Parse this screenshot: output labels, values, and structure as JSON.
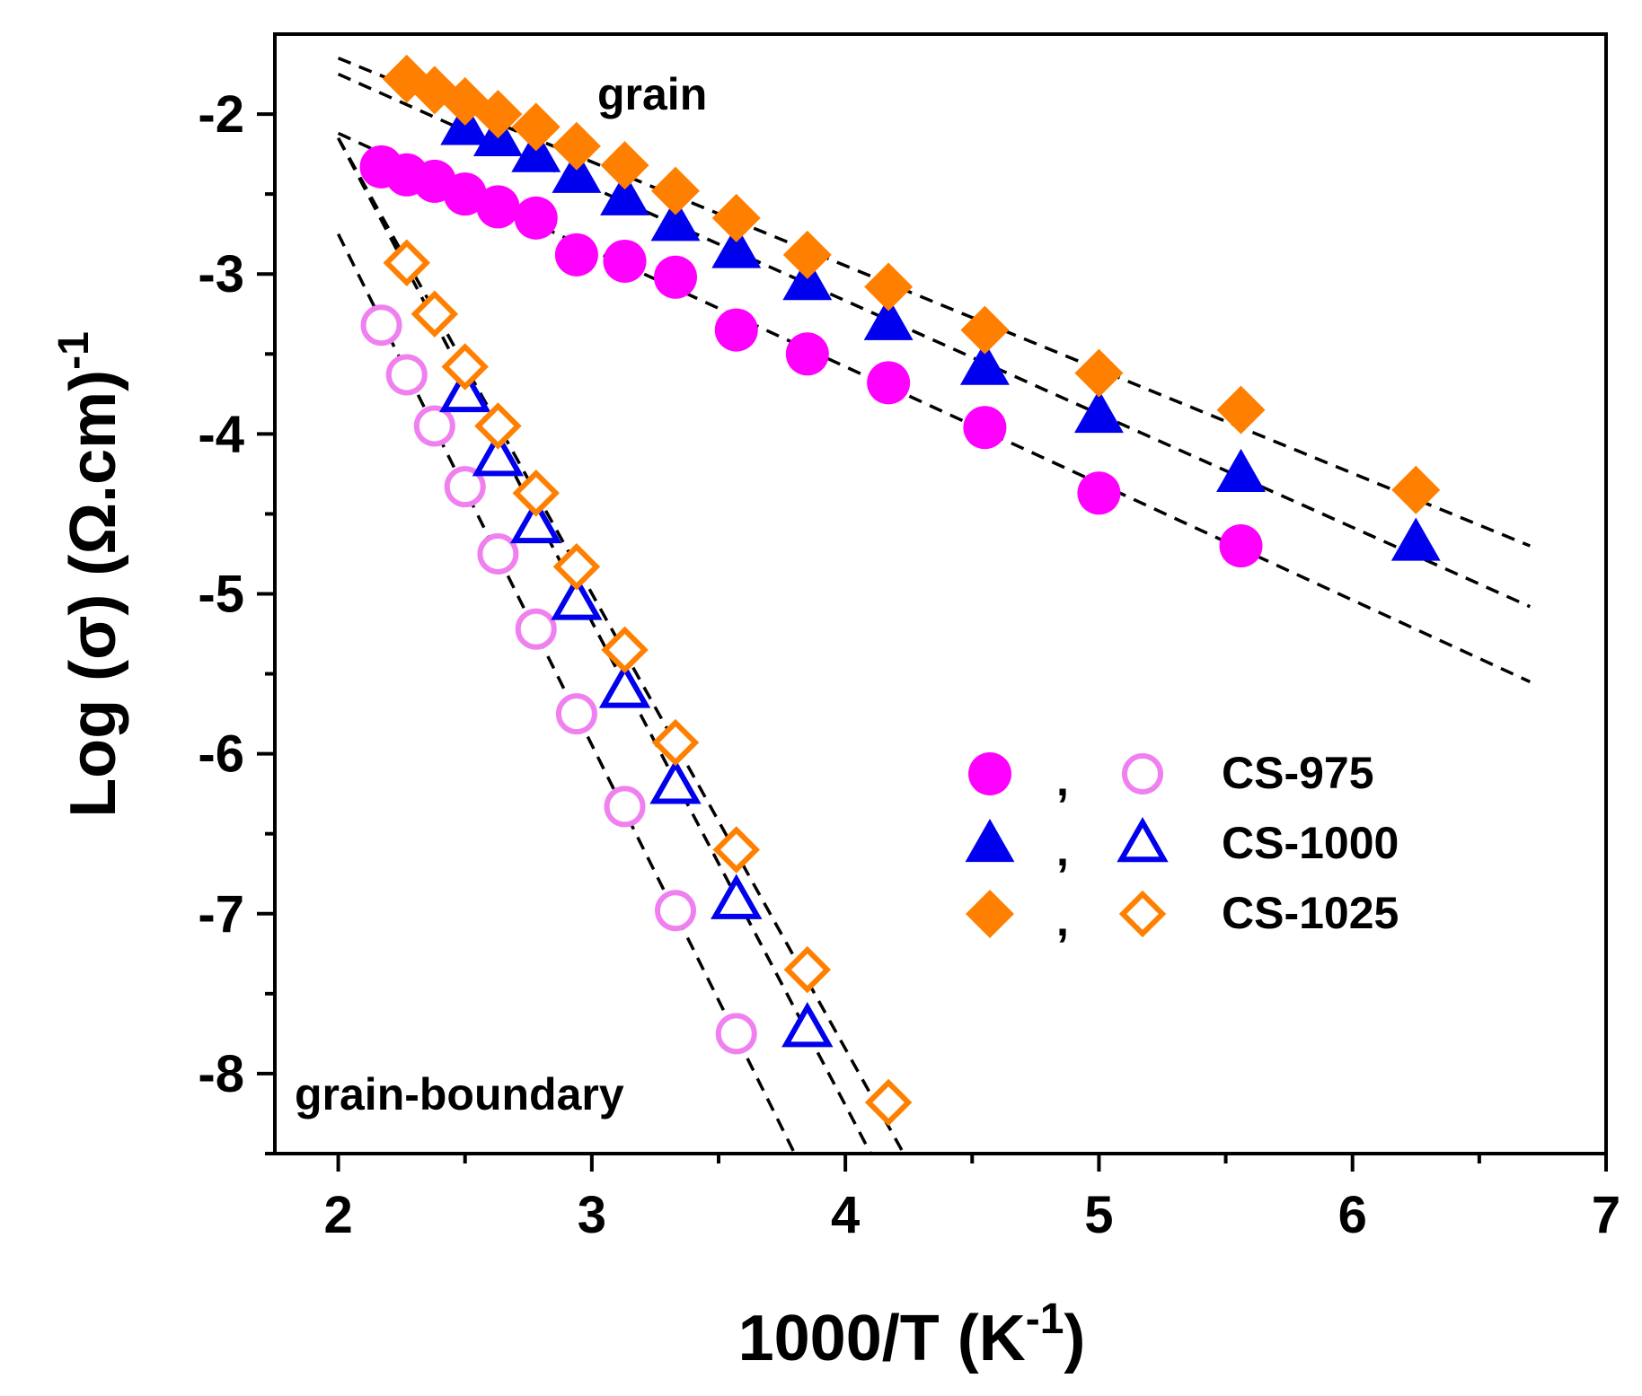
{
  "chart_data": {
    "type": "scatter",
    "xlabel": "1000/T (K-1)",
    "xlabel_main": "1000/T (K",
    "xlabel_sup": "-1",
    "xlabel_close": ")",
    "ylabel": "Log (σ) (Ω.cm)-1",
    "ylabel_main": "Log (σ) (Ω.cm)",
    "ylabel_sup": "-1",
    "xlim": [
      1.75,
      7.0
    ],
    "ylim": [
      -8.5,
      -1.5
    ],
    "xticks": [
      2,
      3,
      4,
      5,
      6,
      7
    ],
    "yticks": [
      -8,
      -7,
      -6,
      -5,
      -4,
      -3,
      -2
    ],
    "grid": false,
    "annotations": {
      "grain": "grain",
      "grain_boundary": "grain-boundary"
    },
    "legend": {
      "placement": "center-right",
      "separator": ",",
      "entries": [
        "CS-975",
        "CS-1000",
        "CS-1025"
      ]
    },
    "colors": {
      "CS-975": "#ff00ff",
      "CS-975-open": "#f080f0",
      "CS-1000": "#0000ee",
      "CS-1025": "#ff8000",
      "fit": "#000000"
    },
    "series": [
      {
        "name": "CS-975",
        "region": "grain",
        "marker": "circle",
        "filled": true,
        "color": "#ff00ff",
        "x": [
          2.17,
          2.27,
          2.38,
          2.5,
          2.63,
          2.78,
          2.94,
          3.13,
          3.33,
          3.57,
          3.85,
          4.17,
          4.55,
          5.0,
          5.56
        ],
        "y": [
          -2.33,
          -2.38,
          -2.42,
          -2.5,
          -2.58,
          -2.65,
          -2.88,
          -2.92,
          -3.02,
          -3.35,
          -3.5,
          -3.68,
          -3.96,
          -4.37,
          -4.7
        ],
        "fit": {
          "x": [
            2.0,
            6.7
          ],
          "y": [
            -2.12,
            -5.55
          ]
        }
      },
      {
        "name": "CS-1000",
        "region": "grain",
        "marker": "triangle",
        "filled": true,
        "color": "#0000ee",
        "x": [
          2.5,
          2.63,
          2.78,
          2.94,
          3.13,
          3.33,
          3.57,
          3.85,
          4.17,
          4.55,
          5.0,
          5.56,
          6.25
        ],
        "y": [
          -2.08,
          -2.15,
          -2.25,
          -2.38,
          -2.52,
          -2.68,
          -2.85,
          -3.05,
          -3.3,
          -3.58,
          -3.88,
          -4.25,
          -4.68
        ],
        "fit": {
          "x": [
            2.0,
            6.7
          ],
          "y": [
            -1.75,
            -5.08
          ]
        }
      },
      {
        "name": "CS-1025",
        "region": "grain",
        "marker": "diamond",
        "filled": true,
        "color": "#ff8000",
        "x": [
          2.27,
          2.38,
          2.5,
          2.63,
          2.78,
          2.94,
          3.13,
          3.33,
          3.57,
          3.85,
          4.17,
          4.55,
          5.0,
          5.56,
          6.25
        ],
        "y": [
          -1.78,
          -1.85,
          -1.92,
          -2.0,
          -2.08,
          -2.2,
          -2.32,
          -2.48,
          -2.65,
          -2.88,
          -3.08,
          -3.35,
          -3.62,
          -3.85,
          -4.35
        ],
        "fit": {
          "x": [
            2.0,
            6.7
          ],
          "y": [
            -1.65,
            -4.7
          ]
        }
      },
      {
        "name": "CS-975",
        "region": "grain-boundary",
        "marker": "circle",
        "filled": false,
        "color": "#f080f0",
        "x": [
          2.17,
          2.27,
          2.38,
          2.5,
          2.63,
          2.78,
          2.94,
          3.13,
          3.33,
          3.57
        ],
        "y": [
          -3.32,
          -3.63,
          -3.95,
          -4.33,
          -4.75,
          -5.22,
          -5.75,
          -6.33,
          -6.98,
          -7.75
        ],
        "fit": {
          "x": [
            2.0,
            3.8
          ],
          "y": [
            -2.75,
            -8.5
          ]
        }
      },
      {
        "name": "CS-1000",
        "region": "grain-boundary",
        "marker": "triangle",
        "filled": false,
        "color": "#0000ee",
        "x": [
          2.5,
          2.63,
          2.78,
          2.94,
          3.13,
          3.33,
          3.57,
          3.85
        ],
        "y": [
          -3.75,
          -4.15,
          -4.57,
          -5.05,
          -5.6,
          -6.2,
          -6.92,
          -7.72
        ],
        "fit": {
          "x": [
            2.0,
            4.1
          ],
          "y": [
            -2.15,
            -8.5
          ]
        }
      },
      {
        "name": "CS-1025",
        "region": "grain-boundary",
        "marker": "diamond",
        "filled": false,
        "color": "#ff8000",
        "x": [
          2.27,
          2.38,
          2.5,
          2.63,
          2.78,
          2.94,
          3.13,
          3.33,
          3.57,
          3.85,
          4.17
        ],
        "y": [
          -2.93,
          -3.25,
          -3.58,
          -3.95,
          -4.37,
          -4.83,
          -5.35,
          -5.93,
          -6.6,
          -7.35,
          -8.18
        ],
        "fit": {
          "x": [
            2.0,
            4.23
          ],
          "y": [
            -2.15,
            -8.5
          ]
        }
      }
    ]
  }
}
